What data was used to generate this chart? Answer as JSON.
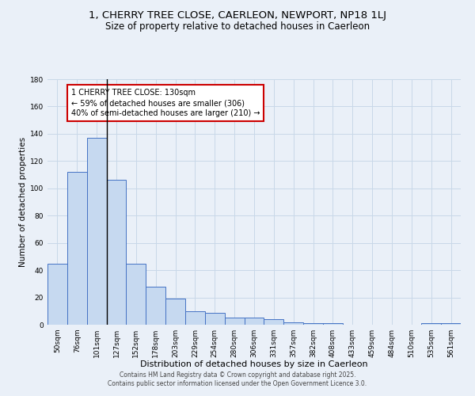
{
  "title": "1, CHERRY TREE CLOSE, CAERLEON, NEWPORT, NP18 1LJ",
  "subtitle": "Size of property relative to detached houses in Caerleon",
  "xlabel": "Distribution of detached houses by size in Caerleon",
  "ylabel": "Number of detached properties",
  "categories": [
    "50sqm",
    "76sqm",
    "101sqm",
    "127sqm",
    "152sqm",
    "178sqm",
    "203sqm",
    "229sqm",
    "254sqm",
    "280sqm",
    "306sqm",
    "331sqm",
    "357sqm",
    "382sqm",
    "408sqm",
    "433sqm",
    "459sqm",
    "484sqm",
    "510sqm",
    "535sqm",
    "561sqm"
  ],
  "values": [
    45,
    112,
    137,
    106,
    45,
    28,
    19,
    10,
    9,
    5,
    5,
    4,
    2,
    1,
    1,
    0,
    0,
    0,
    0,
    1,
    1
  ],
  "bar_color": "#c6d9f0",
  "bar_edge_color": "#4472c4",
  "annotation_text": "1 CHERRY TREE CLOSE: 130sqm\n← 59% of detached houses are smaller (306)\n40% of semi-detached houses are larger (210) →",
  "annotation_box_color": "#ffffff",
  "annotation_box_edge_color": "#cc0000",
  "vline_x": 3,
  "ylim": [
    0,
    180
  ],
  "yticks": [
    0,
    20,
    40,
    60,
    80,
    100,
    120,
    140,
    160,
    180
  ],
  "grid_color": "#c8d8e8",
  "background_color": "#eaf0f8",
  "footer_line1": "Contains HM Land Registry data © Crown copyright and database right 2025.",
  "footer_line2": "Contains public sector information licensed under the Open Government Licence 3.0.",
  "title_fontsize": 9.5,
  "subtitle_fontsize": 8.5,
  "xlabel_fontsize": 8,
  "ylabel_fontsize": 7.5,
  "annotation_fontsize": 7,
  "tick_fontsize": 6.5
}
